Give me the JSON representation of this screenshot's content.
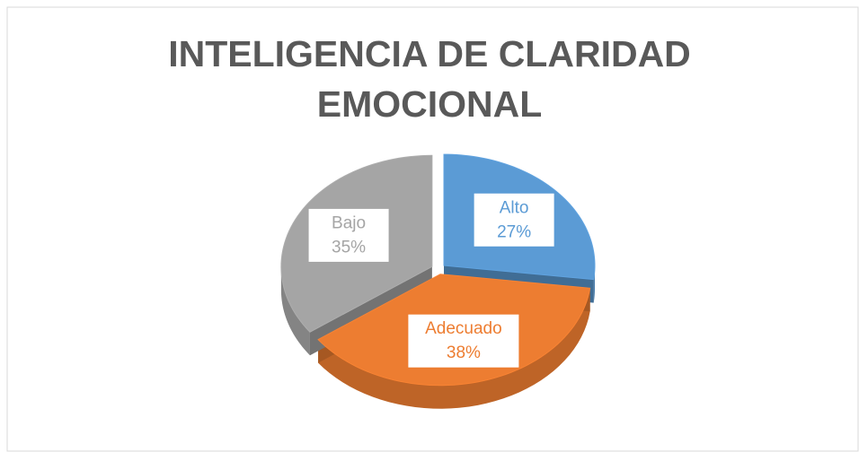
{
  "chart_data": {
    "type": "pie",
    "title": "INTELIGENCIA DE CLARIDAD EMOCIONAL",
    "categories": [
      "Alto",
      "Adecuado",
      "Bajo"
    ],
    "values": [
      27,
      38,
      35
    ],
    "value_labels": [
      "27%",
      "38%",
      "35%"
    ],
    "colors": [
      "#5b9bd5",
      "#ed7d31",
      "#a5a5a5"
    ]
  }
}
